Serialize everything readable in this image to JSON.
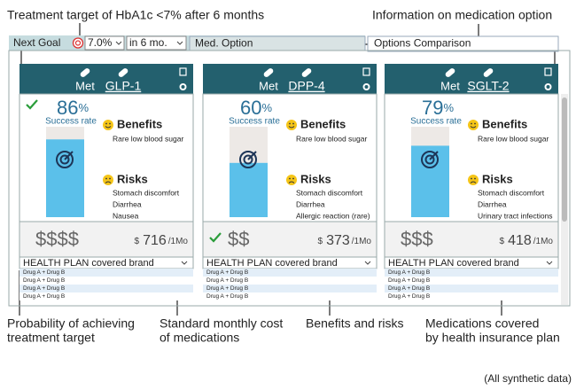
{
  "annotations": {
    "top_left": "Treatment target of HbA1c <7% after 6 months",
    "top_right": "Information on medication option",
    "bottom": [
      [
        "Probability of achieving",
        "treatment target"
      ],
      [
        "Standard monthly cost",
        "of medications"
      ],
      [
        "Benefits and risks"
      ],
      [
        "Medications covered",
        "by health insurance plan"
      ]
    ],
    "note": "(All synthetic data)"
  },
  "toolbar": {
    "next_goal": "Next Goal",
    "target": "7.0%",
    "period": "in 6 mo.",
    "tabs": [
      "Med. Option",
      "Options Comparison"
    ]
  },
  "options": [
    {
      "class": "Met",
      "drug": "GLP-1",
      "success_rate": 86,
      "success_unit": "%",
      "success_label": "Success rate",
      "highlight": "success_rate",
      "benefits_title": "Benefits",
      "benefits": [
        "Rare low blood sugar"
      ],
      "risks_title": "Risks",
      "risks": [
        "Stomach discomfort",
        "Diarrhea",
        "Nausea"
      ],
      "cost_symbol": "$$$$",
      "currency": "$",
      "cost": 716,
      "cost_unit": "/1Mo",
      "plan": "HEALTH PLAN covered brand",
      "covered": [
        "Drug A + Drug B",
        "Drug A + Drug B",
        "Drug A + Drug B",
        "Drug A + Drug B"
      ]
    },
    {
      "class": "Met",
      "drug": "DPP-4",
      "success_rate": 60,
      "success_unit": "%",
      "success_label": "Success rate",
      "highlight": "cost",
      "benefits_title": "Benefits",
      "benefits": [
        "Rare low blood sugar"
      ],
      "risks_title": "Risks",
      "risks": [
        "Stomach discomfort",
        "Diarrhea",
        "Allergic reaction (rare)"
      ],
      "cost_symbol": "$$",
      "currency": "$",
      "cost": 373,
      "cost_unit": "/1Mo",
      "plan": "HEALTH PLAN covered brand",
      "covered": [
        "Drug A + Drug B",
        "Drug A + Drug B",
        "Drug A + Drug B",
        "Drug A + Drug B"
      ]
    },
    {
      "class": "Met",
      "drug": "SGLT-2",
      "success_rate": 79,
      "success_unit": "%",
      "success_label": "Success rate",
      "benefits_title": "Benefits",
      "benefits": [
        "Rare low blood sugar"
      ],
      "risks_title": "Risks",
      "risks": [
        "Stomach discomfort",
        "Diarrhea",
        "Urinary tract infections"
      ],
      "cost_symbol": "$$$",
      "currency": "$",
      "cost": 418,
      "cost_unit": "/1Mo",
      "plan": "HEALTH PLAN covered brand",
      "covered": [
        "Drug A + Drug B",
        "Drug A + Drug B",
        "Drug A + Drug B",
        "Drug A + Drug B"
      ]
    }
  ]
}
